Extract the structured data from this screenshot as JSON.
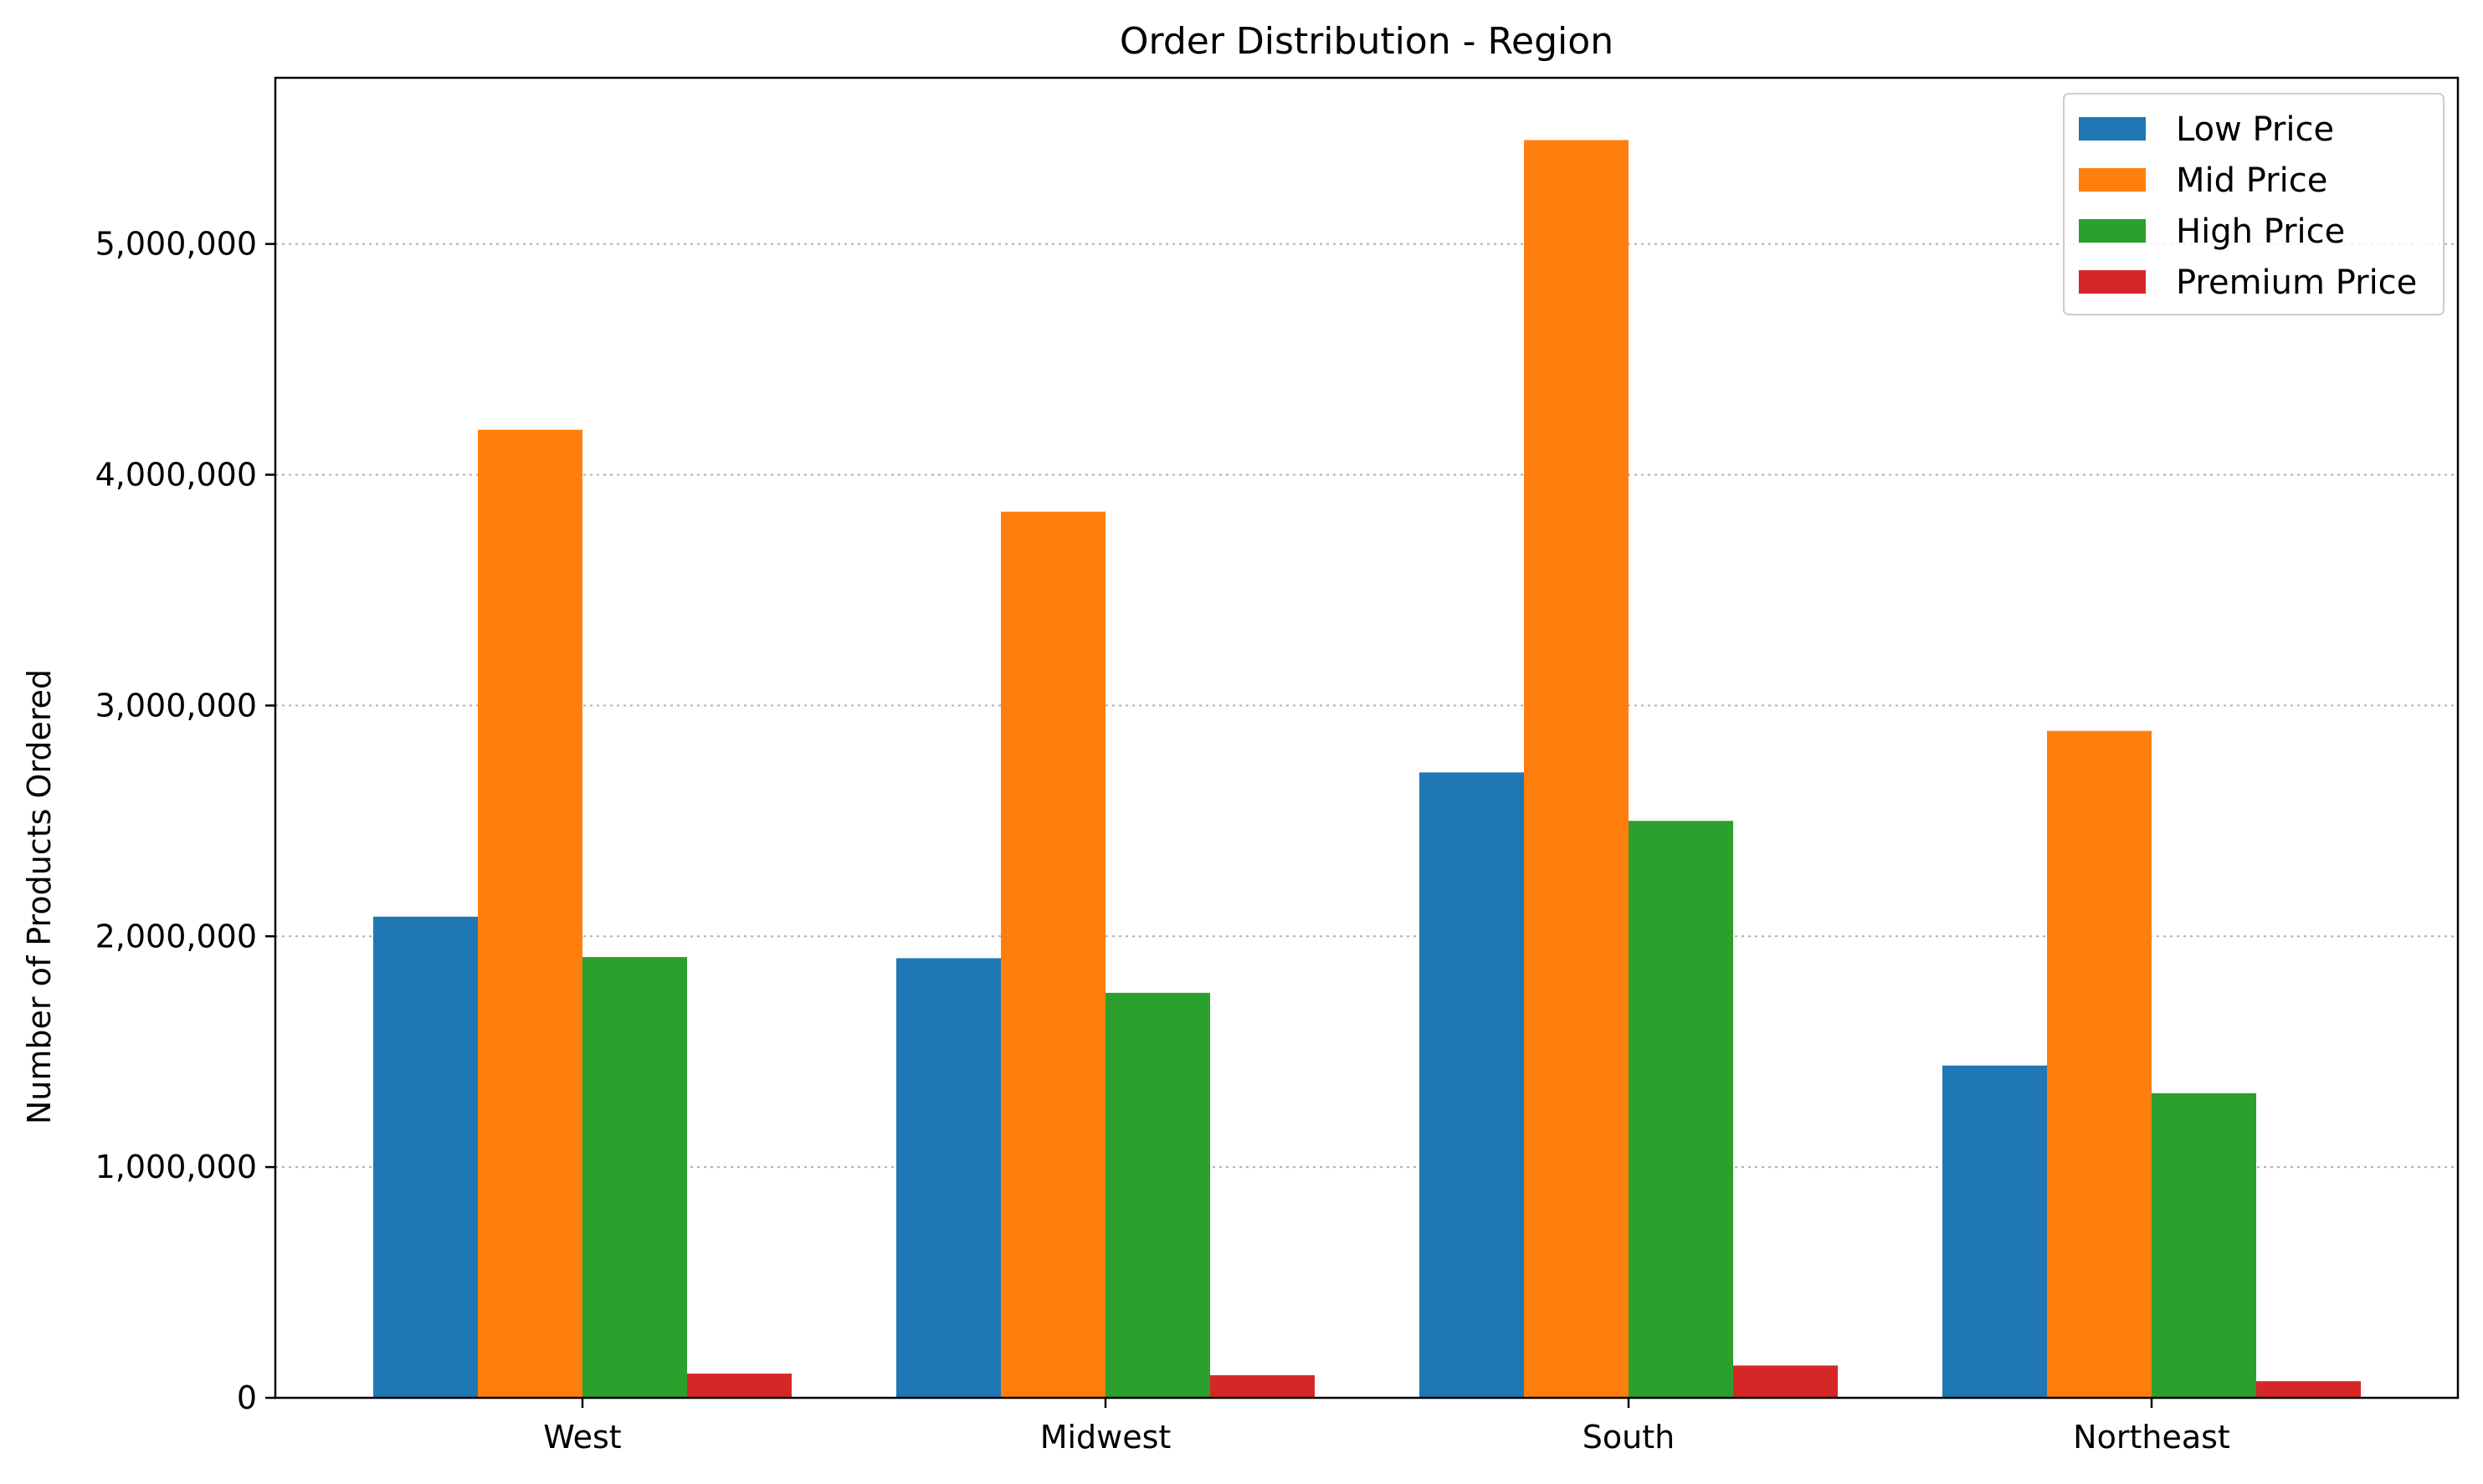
{
  "chart_data": {
    "type": "bar",
    "title": "Order Distribution - Region",
    "xlabel": "",
    "ylabel": "Number of Products Ordered",
    "categories": [
      "West",
      "Midwest",
      "South",
      "Northeast"
    ],
    "series": [
      {
        "name": "Low Price",
        "color": "#1f77b4",
        "values": [
          2085000,
          1905000,
          2710000,
          1440000
        ]
      },
      {
        "name": "Mid Price",
        "color": "#ff7f0e",
        "values": [
          4195000,
          3840000,
          5450000,
          2890000
        ]
      },
      {
        "name": "High Price",
        "color": "#2ca02c",
        "values": [
          1910000,
          1755000,
          2500000,
          1320000
        ]
      },
      {
        "name": "Premium Price",
        "color": "#d62728",
        "values": [
          105000,
          98000,
          140000,
          72000
        ]
      }
    ],
    "ylim": [
      0,
      5720000
    ],
    "yticks": [
      0,
      1000000,
      2000000,
      3000000,
      4000000,
      5000000
    ],
    "ytick_labels": [
      "0",
      "1,000,000",
      "2,000,000",
      "3,000,000",
      "4,000,000",
      "5,000,000"
    ],
    "grid": "y-dotted",
    "legend_position": "top-right"
  }
}
